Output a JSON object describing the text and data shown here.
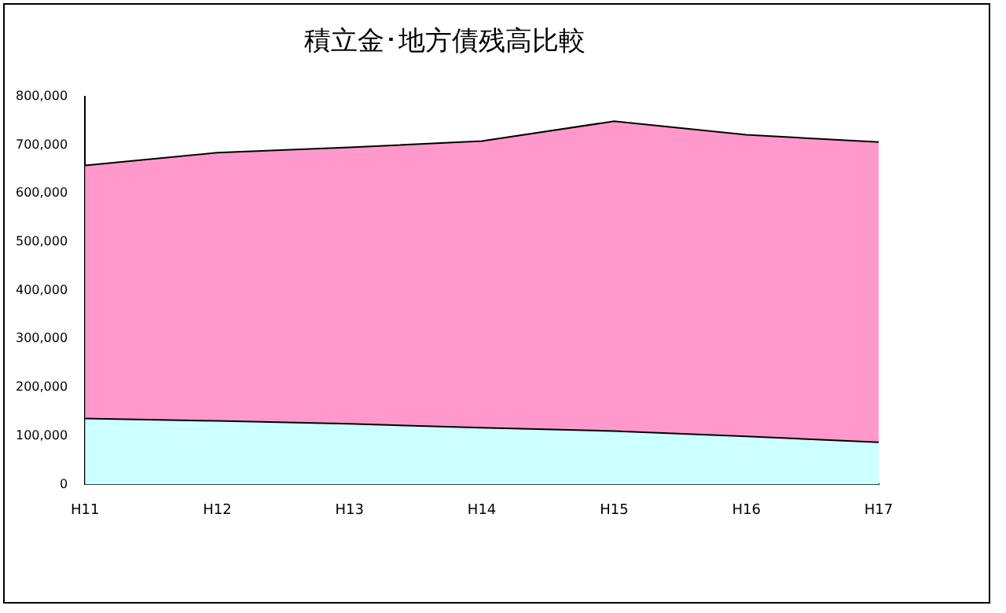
{
  "chart_data": {
    "type": "area",
    "title": "積立金･地方債残高比較",
    "categories": [
      "H11",
      "H12",
      "H13",
      "H14",
      "H15",
      "H16",
      "H17"
    ],
    "series": [
      {
        "color": "#ccffff",
        "values": [
          136000,
          131000,
          125000,
          117000,
          110000,
          99000,
          87000
        ]
      },
      {
        "color": "#ff99cc",
        "values": [
          658000,
          684000,
          695000,
          708000,
          749000,
          721000,
          706000
        ]
      }
    ],
    "ylim": [
      0,
      800000
    ],
    "yticks": [
      0,
      {
        "value": 100000,
        "label": "100,000"
      },
      {
        "value": 200000,
        "label": "200,000"
      },
      {
        "value": 300000,
        "label": "300,000"
      },
      {
        "value": 400000,
        "label": "400,000"
      },
      {
        "value": 500000,
        "label": "500,000"
      },
      {
        "value": 600000,
        "label": "600,000"
      },
      {
        "value": 700000,
        "label": "700,000"
      },
      {
        "value": 800000,
        "label": "800,000"
      }
    ],
    "grid": false,
    "legend": false
  }
}
